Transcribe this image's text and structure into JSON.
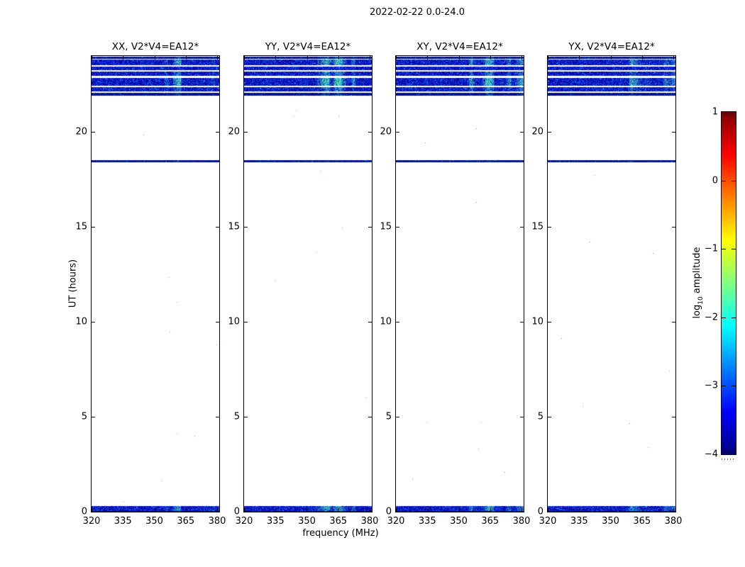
{
  "figure": {
    "suptitle": "2022-02-22 0.0-24.0"
  },
  "panels": [
    {
      "id": "xx",
      "title": "XX, V2*V4=EA12*"
    },
    {
      "id": "yy",
      "title": "YY, V2*V4=EA12*"
    },
    {
      "id": "xy",
      "title": "XY, V2*V4=EA12*"
    },
    {
      "id": "yx",
      "title": "YX, V2*V4=EA12*"
    }
  ],
  "axes": {
    "x": {
      "label": "frequency (MHz)",
      "tick_labels": [
        "320",
        "335",
        "350",
        "365",
        "380"
      ],
      "ticks_mhz": [
        320,
        335,
        350,
        365,
        380
      ],
      "range_mhz": [
        320,
        381
      ]
    },
    "y": {
      "label": "UT (hours)",
      "tick_labels": [
        "0",
        "5",
        "10",
        "15",
        "20"
      ],
      "ticks_hours": [
        0,
        5,
        10,
        15,
        20
      ],
      "range_hours": [
        0,
        24
      ]
    }
  },
  "colorbar": {
    "label_pre": "log",
    "label_sub": "10",
    "label_post": " amplitude",
    "tick_labels": [
      "1",
      "0",
      "−1",
      "−2",
      "−3",
      "−4"
    ],
    "ticks_values": [
      1,
      0,
      -1,
      -2,
      -3,
      -4
    ],
    "range": [
      -4,
      1
    ],
    "colormap": "jet",
    "gradient_stops": [
      "#7f0000",
      "#ff0000",
      "#ffff00",
      "#00ffff",
      "#0000ff",
      "#00007f"
    ]
  },
  "chart_data": {
    "type": "heatmap",
    "title": "2022-02-22 0.0-24.0",
    "subplot_titles": [
      "XX, V2*V4=EA12*",
      "YY, V2*V4=EA12*",
      "XY, V2*V4=EA12*",
      "YX, V2*V4=EA12*"
    ],
    "xlabel": "frequency (MHz)",
    "xlim": [
      320,
      381
    ],
    "xticks": [
      320,
      335,
      350,
      365,
      380
    ],
    "ylabel": "UT (hours)",
    "ylim": [
      0,
      24
    ],
    "yticks": [
      0,
      5,
      10,
      15,
      20
    ],
    "colorbar_label": "log10 amplitude",
    "clim": [
      -4,
      1
    ],
    "colormap": "jet",
    "patch_freq_range_mhz": [
      355,
      381
    ],
    "bands_hours": [
      {
        "t0": 23.85,
        "t1": 23.97,
        "kind": "dark",
        "patch": 0.5
      },
      {
        "t0": 23.51,
        "t1": 23.82,
        "kind": "noise",
        "patch": 0.9
      },
      {
        "t0": 23.25,
        "t1": 23.44,
        "kind": "noise",
        "patch": 0.15
      },
      {
        "t0": 22.95,
        "t1": 23.18,
        "kind": "noise",
        "patch": 0.7
      },
      {
        "t0": 22.43,
        "t1": 22.85,
        "kind": "noise",
        "patch": 1.0
      },
      {
        "t0": 22.13,
        "t1": 22.37,
        "kind": "noise",
        "patch": 0.65
      },
      {
        "t0": 21.91,
        "t1": 22.06,
        "kind": "dark",
        "patch": 0.5
      },
      {
        "t0": 18.4,
        "t1": 18.51,
        "kind": "dark",
        "patch": 0.35
      },
      {
        "t0": 0.05,
        "t1": 0.3,
        "kind": "noise",
        "patch": 0.85
      },
      {
        "t0": 0.0,
        "t1": 0.05,
        "kind": "dark",
        "patch": 0.3
      }
    ]
  }
}
